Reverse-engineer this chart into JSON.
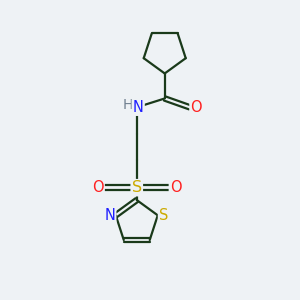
{
  "bg_color": "#eef2f5",
  "bond_color": "#1a3a1a",
  "N_color": "#2020ff",
  "O_color": "#ff2020",
  "S_color": "#ccaa00",
  "line_width": 1.6,
  "font_size": 10.5,
  "figsize": [
    3.0,
    3.0
  ],
  "dpi": 100,
  "xlim": [
    0,
    10
  ],
  "ylim": [
    0,
    10
  ]
}
